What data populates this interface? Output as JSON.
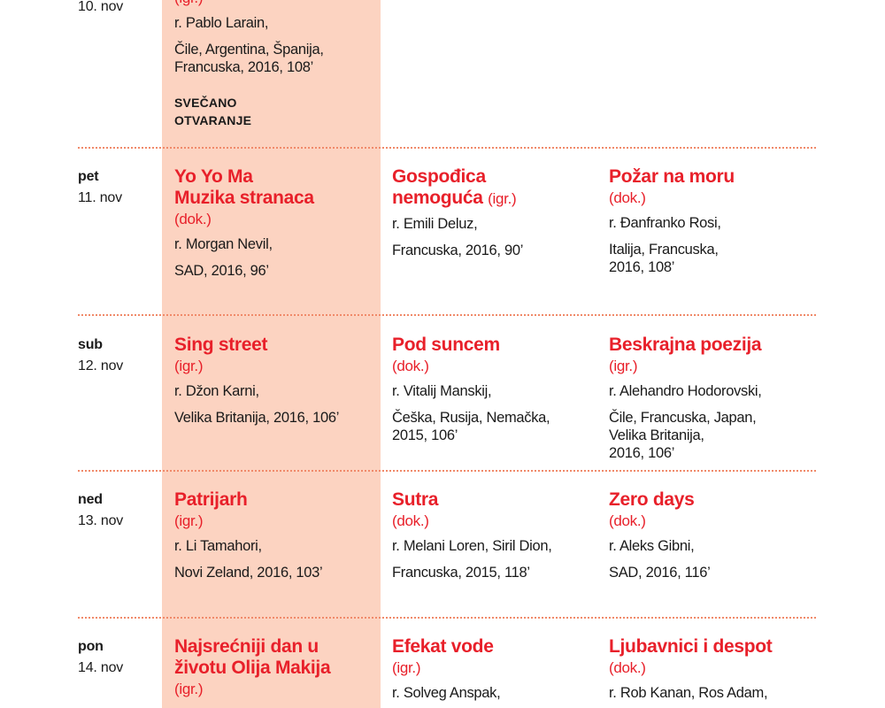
{
  "colors": {
    "accent": "#e8202a",
    "highlight": "#fcd3c1",
    "divider": "#f08a6a"
  },
  "rows": [
    {
      "weekday": "",
      "date": "10. nov",
      "films": [
        {
          "title": "",
          "type": "(igr.)",
          "director": "r. Pablo Larain,",
          "country": [
            "Čile, Argentina, Španija,",
            "Francuska, 2016, 108’"
          ],
          "note": [
            "SVEČANO",
            "OTVARANJE"
          ]
        }
      ]
    },
    {
      "weekday": "pet",
      "date": "11. nov",
      "films": [
        {
          "title": "Yo Yo Ma\nMuzika stranaca",
          "type": "(dok.)",
          "director": "r. Morgan Nevil,",
          "country": [
            "SAD, 2016, 96’"
          ]
        },
        {
          "title": "Gospođica\nnemoguća",
          "type_inline": "(igr.)",
          "director": "r. Emili Deluz,",
          "country": [
            "Francuska, 2016, 90’"
          ]
        },
        {
          "title": "Požar na moru",
          "type": "(dok.)",
          "director": "r. Đanfranko Rosi,",
          "country": [
            "Italija, Francuska,",
            "2016, 108’"
          ]
        }
      ]
    },
    {
      "weekday": "sub",
      "date": "12. nov",
      "films": [
        {
          "title": "Sing street",
          "type": "(igr.)",
          "director": "r. Džon Karni,",
          "country": [
            "Velika Britanija, 2016, 106’"
          ]
        },
        {
          "title": "Pod suncem",
          "type": "(dok.)",
          "director": "r. Vitalij Manskij,",
          "country": [
            "Češka, Rusija, Nemačka,",
            "2015, 106’"
          ]
        },
        {
          "title": "Beskrajna poezija",
          "type": "(igr.)",
          "director": "r. Alehandro Hodorovski,",
          "country": [
            "Čile, Francuska, Japan,",
            "Velika Britanija,",
            "2016, 106’"
          ]
        }
      ]
    },
    {
      "weekday": "ned",
      "date": "13. nov",
      "films": [
        {
          "title": "Patrijarh",
          "type": "(igr.)",
          "director": "r. Li Tamahori,",
          "country": [
            "Novi Zeland, 2016, 103’"
          ]
        },
        {
          "title": "Sutra",
          "type": "(dok.)",
          "director": "r. Melani Loren, Siril Dion,",
          "country": [
            "Francuska, 2015, 118’"
          ]
        },
        {
          "title": "Zero days",
          "type": "(dok.)",
          "director": "r. Aleks Gibni,",
          "country": [
            "SAD, 2016, 116’"
          ]
        }
      ]
    },
    {
      "weekday": "pon",
      "date": "14. nov",
      "films": [
        {
          "title": "Najsrećniji dan u\nživotu Olija Makija",
          "type": "(igr.)"
        },
        {
          "title": "Efekat vode",
          "type": "(igr.)",
          "director": "r. Solveg Anspak,"
        },
        {
          "title": "Ljubavnici i despot",
          "type": "(dok.)",
          "director": "r. Rob Kanan, Ros Adam,"
        }
      ]
    }
  ]
}
